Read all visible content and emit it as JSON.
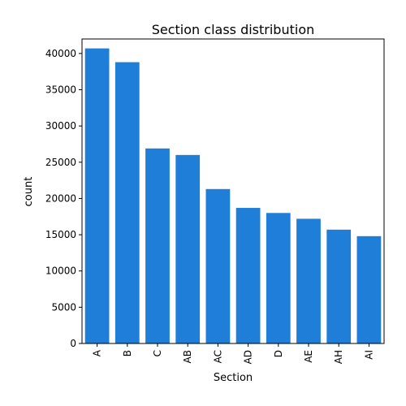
{
  "chart_data": {
    "type": "bar",
    "title": "Section class distribution",
    "xlabel": "Section",
    "ylabel": "count",
    "categories": [
      "A",
      "B",
      "C",
      "AB",
      "AC",
      "AD",
      "D",
      "AE",
      "AH",
      "AI"
    ],
    "values": [
      40700,
      38800,
      26900,
      26000,
      21300,
      18700,
      18000,
      17200,
      15700,
      14800
    ],
    "ylim": [
      0,
      42000
    ],
    "yticks": [
      0,
      5000,
      10000,
      15000,
      20000,
      25000,
      30000,
      35000,
      40000
    ],
    "bar_color": "#1e7ed8",
    "grid": false,
    "legend": "none"
  }
}
